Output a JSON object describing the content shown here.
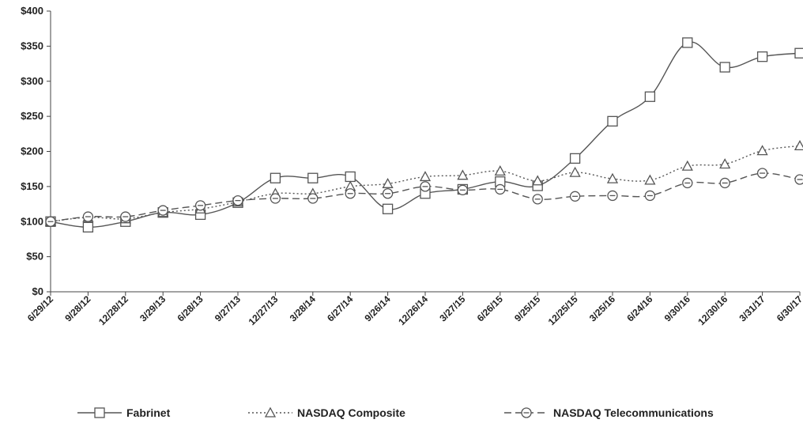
{
  "chart_data": {
    "type": "line",
    "title": "",
    "xlabel": "",
    "ylabel": "",
    "ylim": [
      0,
      400
    ],
    "yticks": [
      0,
      50,
      100,
      150,
      200,
      250,
      300,
      350,
      400
    ],
    "ytick_labels": [
      "$0",
      "$50",
      "$100",
      "$150",
      "$200",
      "$250",
      "$300",
      "$350",
      "$400"
    ],
    "grid": false,
    "legend_position": "bottom",
    "categories": [
      "6/29/12",
      "9/28/12",
      "12/28/12",
      "3/29/13",
      "6/28/13",
      "9/27/13",
      "12/27/13",
      "3/28/14",
      "6/27/14",
      "9/26/14",
      "12/26/14",
      "3/27/15",
      "6/26/15",
      "9/25/15",
      "12/25/15",
      "3/25/16",
      "6/24/16",
      "9/30/16",
      "12/30/16",
      "3/31/17",
      "6/30/17"
    ],
    "series": [
      {
        "name": "Fabrinet",
        "marker": "square",
        "line_style": "solid",
        "color": "#555555",
        "values": [
          100,
          92,
          100,
          113,
          110,
          127,
          162,
          162,
          164,
          118,
          140,
          146,
          157,
          151,
          190,
          243,
          278,
          355,
          320,
          335,
          340
        ]
      },
      {
        "name": "NASDAQ Composite",
        "marker": "triangle",
        "line_style": "dotted",
        "color": "#555555",
        "values": [
          100,
          106,
          104,
          113,
          118,
          128,
          140,
          140,
          150,
          154,
          164,
          166,
          172,
          158,
          170,
          161,
          159,
          179,
          182,
          201,
          208
        ]
      },
      {
        "name": "NASDAQ Telecommunications",
        "marker": "circle",
        "line_style": "dashed",
        "color": "#555555",
        "values": [
          100,
          107,
          107,
          116,
          123,
          130,
          133,
          133,
          140,
          140,
          150,
          145,
          146,
          132,
          136,
          137,
          137,
          155,
          155,
          169,
          160
        ]
      }
    ]
  }
}
